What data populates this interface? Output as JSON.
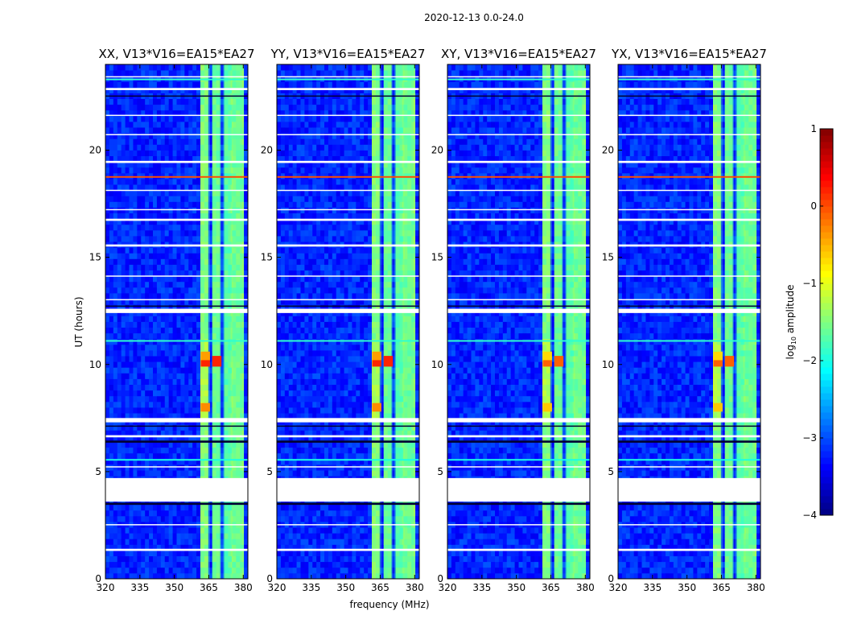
{
  "chart_data": {
    "type": "heatmap",
    "suptitle": "2020-12-13 0.0-24.0",
    "xlabel": "frequency (MHz)",
    "ylabel": "UT (hours)",
    "xlim": [
      320,
      382
    ],
    "ylim": [
      0,
      24
    ],
    "xticks": [
      320,
      335,
      350,
      365,
      380
    ],
    "yticks": [
      0,
      5,
      10,
      15,
      20
    ],
    "colorbar": {
      "label": "log10 amplitude",
      "label_base": "log",
      "label_sub": "10",
      "label_rest": " amplitude",
      "range": [
        -4,
        1
      ],
      "ticks": [
        {
          "v": 1,
          "t": "1"
        },
        {
          "v": 0,
          "t": "0"
        },
        {
          "v": -1,
          "t": "−1"
        },
        {
          "v": -2,
          "t": "−2"
        },
        {
          "v": -3,
          "t": "−3"
        },
        {
          "v": -4,
          "t": "−4"
        }
      ],
      "colormap": "jet",
      "colors": [
        "#00007f",
        "#0000ff",
        "#007fff",
        "#00ffff",
        "#7fff7f",
        "#ffff00",
        "#ff7f00",
        "#ff0000",
        "#7f0000"
      ]
    },
    "background_log10_amplitude": -3.2,
    "panels": [
      {
        "title": "XX, V13*V16=EA15*EA27",
        "pol": "XX"
      },
      {
        "title": "YY, V13*V16=EA15*EA27",
        "pol": "YY"
      },
      {
        "title": "XY, V13*V16=EA15*EA27",
        "pol": "XY"
      },
      {
        "title": "YX, V13*V16=EA15*EA27",
        "pol": "YX"
      }
    ],
    "bright_channels_mhz": [
      {
        "from": 361.5,
        "to": 365.5,
        "level": -1.4
      },
      {
        "from": 366.5,
        "to": 370.5,
        "level": -1.5
      },
      {
        "from": 371.0,
        "to": 374.5,
        "level": -1.6
      },
      {
        "from": 375.5,
        "to": 379.5,
        "level": -1.5
      }
    ],
    "strong_rfi_hours": [
      {
        "from": 7.6,
        "to": 11.2,
        "level": -1.0
      },
      {
        "from": 17.5,
        "to": 22.0,
        "level": -1.3
      }
    ],
    "peak_blocks": [
      {
        "freq": [
          361.5,
          365.5
        ],
        "hours": [
          9.9,
          10.4
        ],
        "level": 0.2
      },
      {
        "freq": [
          366.5,
          370.5
        ],
        "hours": [
          9.9,
          10.4
        ],
        "level": 0.2
      },
      {
        "freq": [
          361.5,
          365.5
        ],
        "hours": [
          7.8,
          8.2
        ],
        "level": -0.3
      },
      {
        "freq": [
          361.5,
          365.5
        ],
        "hours": [
          10.2,
          10.6
        ],
        "level": -0.4
      }
    ],
    "flagged_gaps_hours": [
      [
        3.6,
        4.7
      ],
      [
        7.3,
        7.5
      ],
      [
        12.4,
        12.6
      ],
      [
        15.5,
        15.6
      ],
      [
        16.7,
        16.8
      ],
      [
        19.4,
        19.5
      ],
      [
        22.8,
        22.9
      ],
      [
        1.3,
        1.4
      ],
      [
        6.6,
        6.7
      ],
      [
        23.4,
        23.45
      ],
      [
        17.2,
        17.25
      ],
      [
        21.6,
        21.65
      ],
      [
        13.0,
        13.05
      ],
      [
        2.5,
        2.55
      ],
      [
        5.2,
        5.25
      ],
      [
        18.1,
        18.15
      ],
      [
        20.7,
        20.75
      ],
      [
        14.1,
        14.15
      ]
    ],
    "missing_data_hours": [
      [
        6.35,
        6.45
      ],
      [
        3.45,
        3.55
      ],
      [
        12.7,
        12.75
      ],
      [
        7.1,
        7.15
      ],
      [
        22.5,
        22.55
      ]
    ],
    "highlight_lines": [
      {
        "hour": 18.75,
        "level": 0.0
      },
      {
        "hour": 23.3,
        "level": -1.9
      },
      {
        "hour": 11.1,
        "level": -1.9
      },
      {
        "hour": 5.55,
        "level": -2.0
      }
    ]
  }
}
